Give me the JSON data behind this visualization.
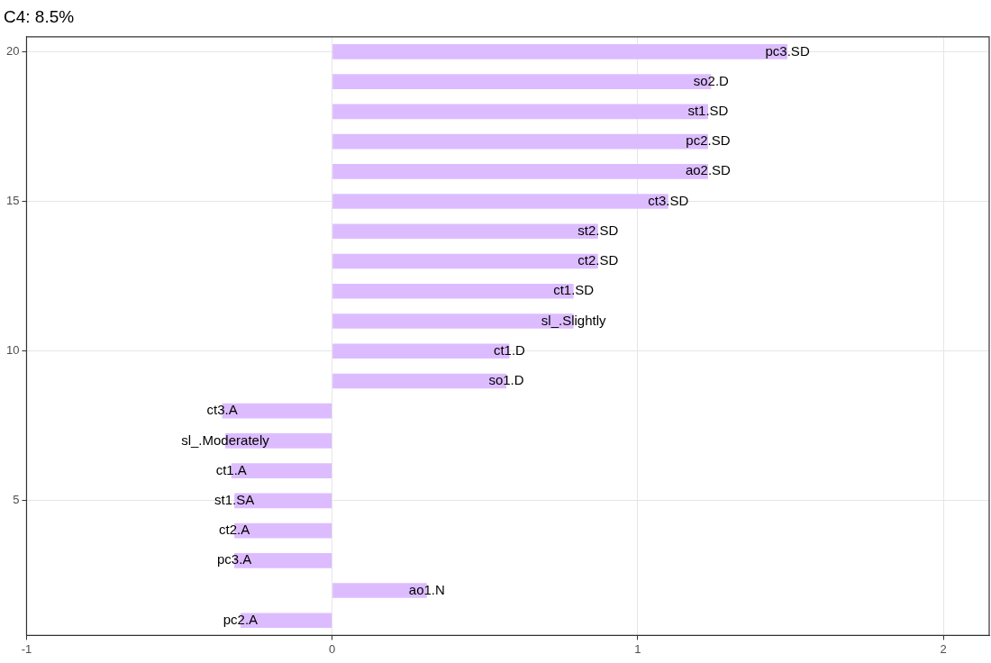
{
  "chart_data": {
    "type": "bar",
    "orientation": "horizontal",
    "title": "C4: 8.5%",
    "categories": [
      "20",
      null,
      null,
      null,
      null,
      "15",
      null,
      null,
      null,
      null,
      "10",
      null,
      null,
      null,
      null,
      "5",
      null,
      null,
      null,
      null
    ],
    "values": [
      1.49,
      1.24,
      1.23,
      1.23,
      1.23,
      1.1,
      0.87,
      0.87,
      0.79,
      0.79,
      0.58,
      0.57,
      -0.36,
      -0.35,
      -0.33,
      -0.32,
      -0.32,
      -0.32,
      0.31,
      -0.3
    ],
    "value_labels": [
      "pc3.SD",
      "so2.D",
      "st1.SD",
      "pc2.SD",
      "ao2.SD",
      "ct3.SD",
      "st2.SD",
      "ct2.SD",
      "ct1.SD",
      "sl_.Slightly",
      "ct1.D",
      "so1.D",
      "ct3.A",
      "sl_.Moderately",
      "ct1.A",
      "st1.SA",
      "ct2.A",
      "pc3.A",
      "ao1.N",
      "pc2.A"
    ],
    "color": "#dcbcff",
    "xlim": [
      -1,
      2.15
    ],
    "xticks": [
      -1,
      0,
      1,
      2
    ],
    "grid": true,
    "legend": false
  }
}
